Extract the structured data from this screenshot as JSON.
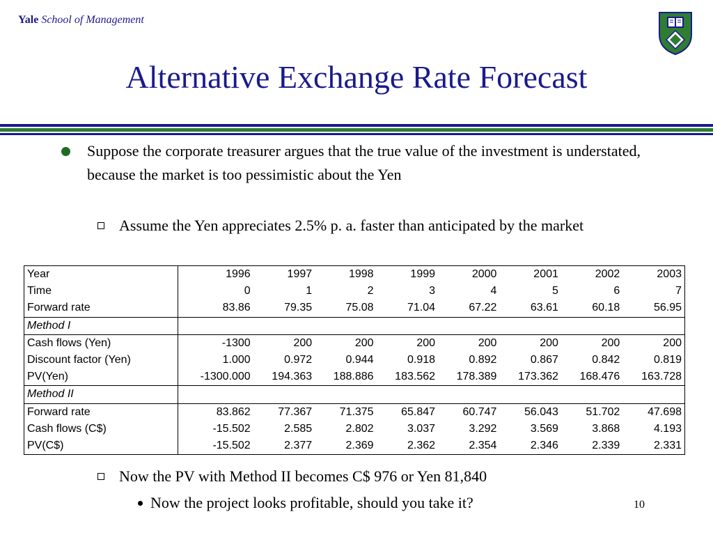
{
  "header": {
    "brand_yale": "Yale",
    "brand_school": "School of Management",
    "crest_icon": "yale-crest-icon"
  },
  "colors": {
    "title": "#1a1a8c",
    "accent_blue": "#1a1a8c",
    "accent_green": "#2e7d32"
  },
  "title": "Alternative Exchange Rate Forecast",
  "bullet1": "Suppose the corporate treasurer argues that the true value of the investment is understated, because the market is too pessimistic about the Yen",
  "bullet1_sub": "Assume the Yen appreciates 2.5% p. a. faster than anticipated by the market",
  "table": {
    "rows": [
      {
        "label": "Year",
        "values": [
          "1996",
          "1997",
          "1998",
          "1999",
          "2000",
          "2001",
          "2002",
          "2003"
        ]
      },
      {
        "label": "Time",
        "values": [
          "0",
          "1",
          "2",
          "3",
          "4",
          "5",
          "6",
          "7"
        ]
      },
      {
        "label": "Forward rate",
        "values": [
          "83.86",
          "79.35",
          "75.08",
          "71.04",
          "67.22",
          "63.61",
          "60.18",
          "56.95"
        ]
      },
      {
        "label": "Method I",
        "section": true,
        "values": []
      },
      {
        "label": "Cash flows (Yen)",
        "values": [
          "-1300",
          "200",
          "200",
          "200",
          "200",
          "200",
          "200",
          "200"
        ]
      },
      {
        "label": "Discount factor (Yen)",
        "values": [
          "1.000",
          "0.972",
          "0.944",
          "0.918",
          "0.892",
          "0.867",
          "0.842",
          "0.819"
        ]
      },
      {
        "label": "PV(Yen)",
        "values": [
          "-1300.000",
          "194.363",
          "188.886",
          "183.562",
          "178.389",
          "173.362",
          "168.476",
          "163.728"
        ]
      },
      {
        "label": "Method II",
        "section": true,
        "values": []
      },
      {
        "label": "Forward rate",
        "values": [
          "83.862",
          "77.367",
          "71.375",
          "65.847",
          "60.747",
          "56.043",
          "51.702",
          "47.698"
        ]
      },
      {
        "label": "Cash flows (C$)",
        "values": [
          "-15.502",
          "2.585",
          "2.802",
          "3.037",
          "3.292",
          "3.569",
          "3.868",
          "4.193"
        ]
      },
      {
        "label": "PV(C$)",
        "values": [
          "-15.502",
          "2.377",
          "2.369",
          "2.362",
          "2.354",
          "2.346",
          "2.339",
          "2.331"
        ]
      }
    ]
  },
  "bullet2": "Now the PV with Method II becomes C$ 976 or Yen 81,840",
  "bullet2_sub": "Now the project looks profitable, should you take it?",
  "page_number": "10"
}
